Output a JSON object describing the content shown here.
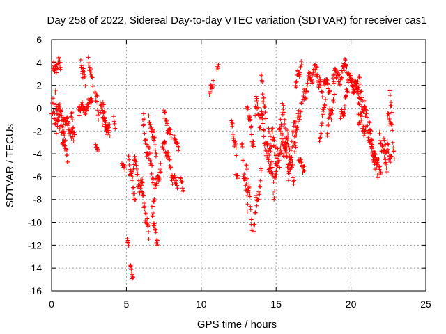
{
  "chart_data": {
    "type": "scatter",
    "title": "Day 258 of 2022, Sidereal Day-to-day VTEC variation (SDTVAR) for receiver cas1",
    "xlabel": "GPS time / hours",
    "ylabel": "SDTVAR / TECUs",
    "xlim": [
      0,
      25
    ],
    "ylim": [
      -16,
      6
    ],
    "xticks": [
      0,
      5,
      10,
      15,
      20,
      25
    ],
    "yticks": [
      -16,
      -14,
      -12,
      -10,
      -8,
      -6,
      -4,
      -2,
      0,
      2,
      4,
      6
    ],
    "grid": true,
    "marker": "+",
    "marker_color": "#ff0000",
    "series_name": "SDTVAR",
    "segments": [
      {
        "t0": 0.0,
        "t1": 0.55,
        "v0": -0.5,
        "v1": -1.5,
        "amp": 1.8
      },
      {
        "t0": 0.1,
        "t1": 0.6,
        "v0": 3.4,
        "v1": 3.9,
        "amp": 0.8
      },
      {
        "t0": 0.25,
        "t1": 0.85,
        "v0": 1.0,
        "v1": -2.2,
        "amp": 1.5
      },
      {
        "t0": 0.6,
        "t1": 1.1,
        "v0": -1.5,
        "v1": -4.5,
        "amp": 1.2
      },
      {
        "t0": 0.75,
        "t1": 1.45,
        "v0": -0.8,
        "v1": -2.4,
        "amp": 0.8
      },
      {
        "t0": 1.3,
        "t1": 1.55,
        "v0": 0.0,
        "v1": -3.0,
        "amp": 1.0
      },
      {
        "t0": 1.8,
        "t1": 2.7,
        "v0": -0.3,
        "v1": 0.6,
        "amp": 0.9
      },
      {
        "t0": 1.95,
        "t1": 2.25,
        "v0": 3.7,
        "v1": 2.5,
        "amp": 1.0
      },
      {
        "t0": 2.45,
        "t1": 2.75,
        "v0": 4.0,
        "v1": 2.5,
        "amp": 0.7
      },
      {
        "t0": 2.9,
        "t1": 3.15,
        "v0": 1.6,
        "v1": -0.5,
        "amp": 0.9
      },
      {
        "t0": 2.95,
        "t1": 3.1,
        "v0": -3.2,
        "v1": -3.7,
        "amp": 0.3
      },
      {
        "t0": 3.25,
        "t1": 3.9,
        "v0": 0.5,
        "v1": -2.4,
        "amp": 1.0
      },
      {
        "t0": 3.4,
        "t1": 3.8,
        "v0": -1.0,
        "v1": -2.0,
        "amp": 0.7
      },
      {
        "t0": 4.15,
        "t1": 4.25,
        "v0": -0.8,
        "v1": -1.6,
        "amp": 0.4
      },
      {
        "t0": 4.7,
        "t1": 4.9,
        "v0": -4.9,
        "v1": -5.2,
        "amp": 0.3
      },
      {
        "t0": 5.05,
        "t1": 5.15,
        "v0": -11.5,
        "v1": -11.9,
        "amp": 0.2
      },
      {
        "t0": 5.15,
        "t1": 5.6,
        "v0": -4.5,
        "v1": -8.0,
        "amp": 0.9
      },
      {
        "t0": 5.25,
        "t1": 5.45,
        "v0": -13.6,
        "v1": -15.1,
        "amp": 0.4
      },
      {
        "t0": 5.45,
        "t1": 6.1,
        "v0": -4.5,
        "v1": -7.5,
        "amp": 1.2
      },
      {
        "t0": 6.0,
        "t1": 6.5,
        "v0": -7.0,
        "v1": -11.0,
        "amp": 1.0
      },
      {
        "t0": 6.1,
        "t1": 6.8,
        "v0": -1.5,
        "v1": -6.0,
        "amp": 1.5
      },
      {
        "t0": 6.5,
        "t1": 7.0,
        "v0": -1.0,
        "v1": -3.5,
        "amp": 1.0
      },
      {
        "t0": 6.7,
        "t1": 7.3,
        "v0": -9.0,
        "v1": -5.0,
        "amp": 1.2
      },
      {
        "t0": 6.8,
        "t1": 7.1,
        "v0": -10.0,
        "v1": -12.0,
        "amp": 0.7
      },
      {
        "t0": 7.4,
        "t1": 7.9,
        "v0": -3.0,
        "v1": -4.5,
        "amp": 0.9
      },
      {
        "t0": 7.5,
        "t1": 8.0,
        "v0": -0.5,
        "v1": -2.5,
        "amp": 0.8
      },
      {
        "t0": 7.9,
        "t1": 8.4,
        "v0": -5.5,
        "v1": -7.0,
        "amp": 0.8
      },
      {
        "t0": 8.2,
        "t1": 8.5,
        "v0": -2.5,
        "v1": -3.5,
        "amp": 0.5
      },
      {
        "t0": 8.6,
        "t1": 8.8,
        "v0": -6.0,
        "v1": -7.2,
        "amp": 0.5
      },
      {
        "t0": 10.55,
        "t1": 10.8,
        "v0": 1.5,
        "v1": 2.2,
        "amp": 0.5
      },
      {
        "t0": 11.05,
        "t1": 11.15,
        "v0": 3.4,
        "v1": 3.7,
        "amp": 0.2
      },
      {
        "t0": 12.0,
        "t1": 12.35,
        "v0": -1.5,
        "v1": -4.0,
        "amp": 1.0
      },
      {
        "t0": 12.3,
        "t1": 12.45,
        "v0": -5.8,
        "v1": -6.1,
        "amp": 0.2
      },
      {
        "t0": 12.7,
        "t1": 13.1,
        "v0": -3.5,
        "v1": -8.5,
        "amp": 1.2
      },
      {
        "t0": 13.0,
        "t1": 13.4,
        "v0": -5.0,
        "v1": -10.3,
        "amp": 1.2
      },
      {
        "t0": 13.05,
        "t1": 13.5,
        "v0": 0.5,
        "v1": -3.5,
        "amp": 1.0
      },
      {
        "t0": 13.5,
        "t1": 14.0,
        "v0": -10.0,
        "v1": -6.0,
        "amp": 1.2
      },
      {
        "t0": 13.6,
        "t1": 14.1,
        "v0": 0.5,
        "v1": -1.5,
        "amp": 1.5
      },
      {
        "t0": 14.0,
        "t1": 14.3,
        "v0": 2.5,
        "v1": -0.5,
        "amp": 1.0
      },
      {
        "t0": 14.1,
        "t1": 14.6,
        "v0": -2.0,
        "v1": -5.0,
        "amp": 1.2
      },
      {
        "t0": 14.4,
        "t1": 14.9,
        "v0": -4.0,
        "v1": -7.0,
        "amp": 1.5
      },
      {
        "t0": 14.5,
        "t1": 15.1,
        "v0": -2.0,
        "v1": -4.5,
        "amp": 2.0
      },
      {
        "t0": 14.9,
        "t1": 15.4,
        "v0": -6.0,
        "v1": -3.0,
        "amp": 1.5
      },
      {
        "t0": 15.2,
        "t1": 15.7,
        "v0": -1.5,
        "v1": -4.5,
        "amp": 1.5
      },
      {
        "t0": 15.4,
        "t1": 15.9,
        "v0": 0.0,
        "v1": -4.0,
        "amp": 1.5
      },
      {
        "t0": 15.6,
        "t1": 16.2,
        "v0": -4.5,
        "v1": -6.0,
        "amp": 1.5
      },
      {
        "t0": 15.8,
        "t1": 16.4,
        "v0": -5.0,
        "v1": -1.0,
        "amp": 1.5
      },
      {
        "t0": 16.2,
        "t1": 16.7,
        "v0": -3.5,
        "v1": 0.5,
        "amp": 1.2
      },
      {
        "t0": 16.3,
        "t1": 16.7,
        "v0": 2.2,
        "v1": 3.8,
        "amp": 0.7
      },
      {
        "t0": 16.5,
        "t1": 16.9,
        "v0": -4.5,
        "v1": -5.5,
        "amp": 0.6
      },
      {
        "t0": 16.8,
        "t1": 17.2,
        "v0": 0.5,
        "v1": 2.5,
        "amp": 1.0
      },
      {
        "t0": 17.2,
        "t1": 17.7,
        "v0": 2.5,
        "v1": 3.3,
        "amp": 0.9
      },
      {
        "t0": 17.7,
        "t1": 18.1,
        "v0": 3.0,
        "v1": 1.5,
        "amp": 0.9
      },
      {
        "t0": 17.9,
        "t1": 18.3,
        "v0": -2.8,
        "v1": 1.0,
        "amp": 0.8
      },
      {
        "t0": 18.2,
        "t1": 18.6,
        "v0": 2.5,
        "v1": 1.5,
        "amp": 0.7
      },
      {
        "t0": 18.4,
        "t1": 18.9,
        "v0": -2.0,
        "v1": 1.0,
        "amp": 1.0
      },
      {
        "t0": 18.8,
        "t1": 19.6,
        "v0": 2.5,
        "v1": 3.2,
        "amp": 1.0
      },
      {
        "t0": 19.3,
        "t1": 19.8,
        "v0": -1.5,
        "v1": 1.5,
        "amp": 1.0
      },
      {
        "t0": 19.6,
        "t1": 20.2,
        "v0": 3.5,
        "v1": 2.0,
        "amp": 1.0
      },
      {
        "t0": 20.0,
        "t1": 20.6,
        "v0": 2.5,
        "v1": 1.0,
        "amp": 1.0
      },
      {
        "t0": 20.3,
        "t1": 20.9,
        "v0": 3.0,
        "v1": 0.0,
        "amp": 1.2
      },
      {
        "t0": 20.5,
        "t1": 21.0,
        "v0": -0.5,
        "v1": -2.0,
        "amp": 1.0
      },
      {
        "t0": 20.9,
        "t1": 21.4,
        "v0": 0.0,
        "v1": -3.5,
        "amp": 1.2
      },
      {
        "t0": 21.2,
        "t1": 21.8,
        "v0": -1.5,
        "v1": -6.0,
        "amp": 1.2
      },
      {
        "t0": 21.4,
        "t1": 22.0,
        "v0": -4.0,
        "v1": -5.5,
        "amp": 1.0
      },
      {
        "t0": 21.9,
        "t1": 22.4,
        "v0": -2.5,
        "v1": -5.0,
        "amp": 1.0
      },
      {
        "t0": 22.2,
        "t1": 22.7,
        "v0": -3.0,
        "v1": -4.5,
        "amp": 1.0
      },
      {
        "t0": 22.6,
        "t1": 22.9,
        "v0": 1.8,
        "v1": -4.5,
        "amp": 0.8
      },
      {
        "t0": 22.45,
        "t1": 22.7,
        "v0": -0.5,
        "v1": -1.5,
        "amp": 0.5
      }
    ]
  }
}
